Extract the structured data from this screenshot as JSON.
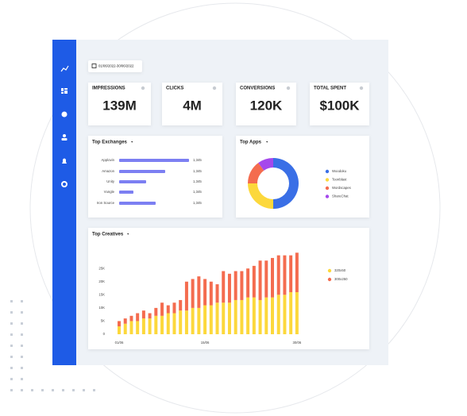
{
  "date_range": "01/06/2022-30/06/2022",
  "kpis": [
    {
      "label": "IMPRESSIONS",
      "value": "139M"
    },
    {
      "label": "CLICKS",
      "value": "4M"
    },
    {
      "label": "CONVERSIONS",
      "value": "120K"
    },
    {
      "label": "TOTAL SPENT",
      "value": "$100K"
    }
  ],
  "exchanges": {
    "type": "bar",
    "title": "Top Exchanges",
    "categories": [
      "Applovin",
      "Amazon",
      "Unity",
      "Vungle",
      "Iron Source"
    ],
    "values": [
      88,
      58,
      34,
      18,
      46
    ],
    "amounts": [
      "1,345",
      "1,345",
      "1,345",
      "1,345",
      "1,345"
    ],
    "color": "#7c7ff2",
    "xlim": [
      0,
      100
    ]
  },
  "apps": {
    "type": "pie",
    "title": "Top Apps",
    "categories": [
      "Woodoku",
      "Toonblast",
      "Wordscapes",
      "ShareChat"
    ],
    "values": [
      50,
      25,
      15,
      10
    ],
    "colors": [
      "#3a6fe6",
      "#fcd83c",
      "#f46c4f",
      "#a548ec"
    ]
  },
  "creatives": {
    "type": "stacked-bar",
    "title": "Top Creatives",
    "categories": [
      "01/06",
      null,
      null,
      null,
      null,
      null,
      null,
      null,
      null,
      null,
      null,
      null,
      null,
      null,
      "15/06",
      null,
      null,
      null,
      null,
      null,
      null,
      null,
      null,
      null,
      null,
      null,
      null,
      null,
      null,
      "30/06"
    ],
    "series": [
      {
        "name": "320x50",
        "color": "#fcd83c",
        "values": [
          3000,
          4000,
          5000,
          5000,
          6000,
          6000,
          7000,
          7000,
          8000,
          8000,
          9000,
          9000,
          10000,
          10000,
          11000,
          11000,
          12000,
          12000,
          12000,
          13000,
          13000,
          14000,
          14000,
          13000,
          14000,
          14000,
          15000,
          15000,
          16000,
          16000
        ]
      },
      {
        "name": "300x250",
        "color": "#f46c4f",
        "values": [
          2000,
          2000,
          2000,
          3000,
          3000,
          2000,
          3000,
          5000,
          3000,
          4000,
          4000,
          11000,
          11000,
          12000,
          10000,
          9000,
          7000,
          12000,
          11000,
          11000,
          11000,
          11000,
          12000,
          15000,
          14000,
          15000,
          15000,
          15000,
          14000,
          15000
        ]
      }
    ],
    "ylim": [
      0,
      32000
    ],
    "yticks": [
      0,
      {
        "value": 5000,
        "label": "5K"
      },
      {
        "value": 10000,
        "label": "10K"
      },
      {
        "value": 15000,
        "label": "15K"
      },
      {
        "value": 20000,
        "label": "20K"
      },
      {
        "value": 25000,
        "label": "25K"
      }
    ]
  }
}
